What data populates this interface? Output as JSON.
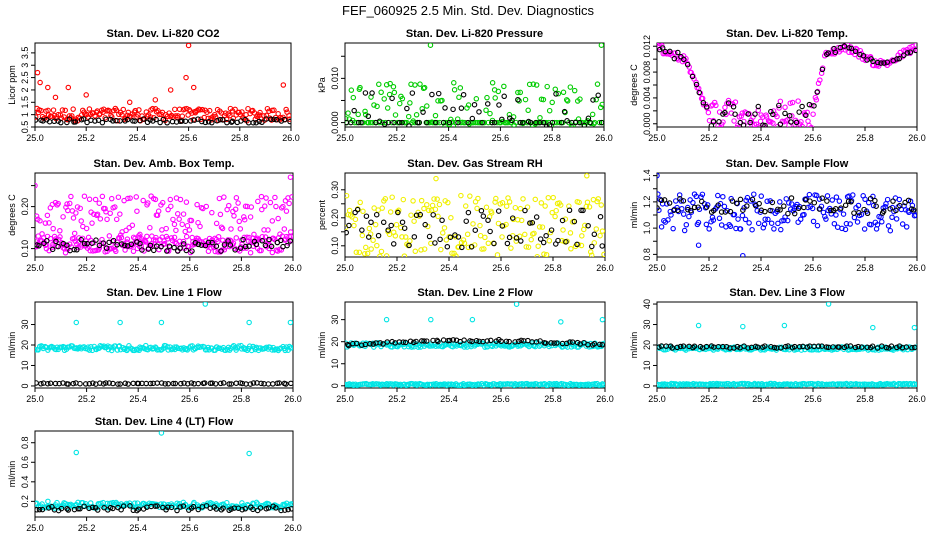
{
  "figure": {
    "title": "FEF_060925  2.5 Min. Std. Dev. Diagnostics"
  },
  "chart_data": [
    {
      "type": "scatter",
      "title": "Stan. Dev. Li-820 CO2",
      "ylabel": "Licor ppm",
      "xlim": [
        25.0,
        26.0
      ],
      "ylim": [
        0.5,
        3.9
      ],
      "xticks": [
        25.0,
        25.2,
        25.4,
        25.6,
        25.8,
        26.0
      ],
      "yticks": [
        0.5,
        1.0,
        1.5,
        2.0,
        2.5,
        3.0,
        3.5
      ],
      "series": [
        {
          "name": "red",
          "color": "#ff0000",
          "base": 1.0,
          "spread": 0.25,
          "outliers": [
            [
              25.01,
              2.7
            ],
            [
              25.02,
              2.3
            ],
            [
              25.05,
              2.1
            ],
            [
              25.08,
              1.7
            ],
            [
              25.13,
              2.1
            ],
            [
              25.2,
              1.8
            ],
            [
              25.37,
              1.5
            ],
            [
              25.47,
              1.6
            ],
            [
              25.53,
              2.0
            ],
            [
              25.59,
              2.5
            ],
            [
              25.6,
              3.8
            ],
            [
              25.62,
              2.1
            ],
            [
              25.97,
              2.2
            ]
          ]
        },
        {
          "name": "black",
          "color": "#000000",
          "base": 0.75,
          "spread": 0.08,
          "outliers": []
        }
      ]
    },
    {
      "type": "scatter",
      "title": "Stan. Dev. Li-820 Pressure",
      "ylabel": "kPa",
      "xlim": [
        25.0,
        26.0
      ],
      "ylim": [
        -0.001,
        0.018
      ],
      "xticks": [
        25.0,
        25.2,
        25.4,
        25.6,
        25.8,
        26.0
      ],
      "yticks": [
        0.0,
        0.005,
        0.01,
        0.015
      ],
      "ytick_labels": [
        "0.000",
        "",
        "0.010",
        ""
      ],
      "series": [
        {
          "name": "green",
          "color": "#00cc00",
          "base": 0.004,
          "spread": 0.005,
          "floor": 0.0,
          "outliers": [
            [
              25.33,
              0.0175
            ],
            [
              25.99,
              0.0175
            ],
            [
              25.57,
              0.009
            ],
            [
              25.42,
              0.009
            ],
            [
              25.27,
              0.0085
            ],
            [
              25.74,
              0.0085
            ]
          ]
        },
        {
          "name": "black",
          "color": "#000000",
          "base": 0.003,
          "spread": 0.004,
          "floor": 0.0,
          "outliers": []
        }
      ]
    },
    {
      "type": "scatter",
      "title": "Stan. Dev. Li-820 Temp.",
      "ylabel": "degrees C",
      "xlim": [
        25.0,
        26.0
      ],
      "ylim": [
        -0.0005,
        0.0125
      ],
      "xticks": [
        25.0,
        25.2,
        25.4,
        25.6,
        25.8,
        26.0
      ],
      "yticks": [
        0.0,
        0.002,
        0.004,
        0.006,
        0.008,
        0.01,
        0.012
      ],
      "ytick_labels": [
        "0.000",
        "",
        "0.004",
        "",
        "0.008",
        "",
        "0.012"
      ],
      "series": [
        {
          "name": "magenta",
          "color": "#ff00ff",
          "curve": "temp",
          "spread": 0.0006,
          "outliers": []
        },
        {
          "name": "black",
          "color": "#000000",
          "curve": "temp",
          "spread": 0.0004,
          "outliers": []
        }
      ]
    },
    {
      "type": "scatter",
      "title": "Stan. Dev. Amb. Box Temp.",
      "ylabel": "degrees C",
      "xlim": [
        25.0,
        26.0
      ],
      "ylim": [
        0.08,
        0.28
      ],
      "xticks": [
        25.0,
        25.2,
        25.4,
        25.6,
        25.8,
        26.0
      ],
      "yticks": [
        0.1,
        0.15,
        0.2,
        0.25
      ],
      "ytick_labels": [
        "0.10",
        "",
        "0.20",
        ""
      ],
      "series": [
        {
          "name": "magenta",
          "color": "#ff00ff",
          "base": 0.165,
          "spread": 0.06,
          "outliers": [
            [
              25.99,
              0.27
            ],
            [
              25.0,
              0.25
            ]
          ]
        },
        {
          "name": "magenta-low",
          "color": "#ff00ff",
          "base": 0.11,
          "spread": 0.02,
          "outliers": []
        },
        {
          "name": "black",
          "color": "#000000",
          "base": 0.108,
          "spread": 0.014,
          "outliers": []
        }
      ]
    },
    {
      "type": "scatter",
      "title": "Stan. Dev. Gas Stream RH",
      "ylabel": "percent",
      "xlim": [
        25.0,
        26.0
      ],
      "ylim": [
        0.06,
        0.36
      ],
      "xticks": [
        25.0,
        25.2,
        25.4,
        25.6,
        25.8,
        26.0
      ],
      "yticks": [
        0.1,
        0.15,
        0.2,
        0.25,
        0.3
      ],
      "ytick_labels": [
        "0.10",
        "",
        "0.20",
        "",
        "0.30"
      ],
      "series": [
        {
          "name": "yellow",
          "color": "#f0f000",
          "base": 0.17,
          "spread": 0.11,
          "outliers": [
            [
              25.35,
              0.34
            ],
            [
              25.93,
              0.35
            ]
          ]
        },
        {
          "name": "black",
          "color": "#000000",
          "base": 0.16,
          "spread": 0.07,
          "outliers": []
        }
      ]
    },
    {
      "type": "scatter",
      "title": "Stan. Dev. Sample Flow",
      "ylabel": "ml/min",
      "xlim": [
        25.0,
        26.0
      ],
      "ylim": [
        0.78,
        1.42
      ],
      "xticks": [
        25.0,
        25.2,
        25.4,
        25.6,
        25.8,
        26.0
      ],
      "yticks": [
        0.8,
        0.9,
        1.0,
        1.1,
        1.2,
        1.3,
        1.4
      ],
      "ytick_labels": [
        "0.8",
        "",
        "1.0",
        "",
        "1.2",
        "",
        "1.4"
      ],
      "series": [
        {
          "name": "blue",
          "color": "#0000ff",
          "base": 1.12,
          "spread": 0.14,
          "outliers": [
            [
              25.0,
              1.4
            ],
            [
              25.33,
              0.79
            ],
            [
              25.16,
              0.87
            ]
          ]
        },
        {
          "name": "black",
          "color": "#000000",
          "base": 1.17,
          "spread": 0.06,
          "outliers": []
        }
      ]
    },
    {
      "type": "scatter",
      "title": "Stan. Dev. Line 1 Flow",
      "ylabel": "ml/min",
      "xlim": [
        25.0,
        26.0
      ],
      "ylim": [
        -1,
        41
      ],
      "xticks": [
        25.0,
        25.2,
        25.4,
        25.6,
        25.8,
        26.0
      ],
      "yticks": [
        0,
        10,
        20,
        30
      ],
      "series": [
        {
          "name": "cyan",
          "color": "#00e5e5",
          "base": 18.5,
          "spread": 1.2,
          "outliers": [
            [
              25.16,
              31
            ],
            [
              25.33,
              31
            ],
            [
              25.49,
              31
            ],
            [
              25.66,
              40
            ],
            [
              25.83,
              31
            ],
            [
              25.99,
              31
            ]
          ]
        },
        {
          "name": "black",
          "color": "#000000",
          "base": 1.2,
          "spread": 0.3,
          "outliers": []
        }
      ]
    },
    {
      "type": "scatter",
      "title": "Stan. Dev. Line 2 Flow",
      "ylabel": "ml/min",
      "xlim": [
        25.0,
        26.0
      ],
      "ylim": [
        -1,
        38
      ],
      "xticks": [
        25.0,
        25.2,
        25.4,
        25.6,
        25.8,
        26.0
      ],
      "yticks": [
        0,
        10,
        20,
        30
      ],
      "series": [
        {
          "name": "cyan-low",
          "color": "#00e5e5",
          "base": 0.6,
          "spread": 0.4,
          "outliers": []
        },
        {
          "name": "cyan-high",
          "color": "#00e5e5",
          "base": 18.5,
          "spread": 1.0,
          "outliers": [
            [
              25.16,
              30
            ],
            [
              25.33,
              30
            ],
            [
              25.49,
              30
            ],
            [
              25.66,
              37
            ],
            [
              25.83,
              29
            ],
            [
              25.99,
              30
            ]
          ]
        },
        {
          "name": "black",
          "color": "#000000",
          "curve": "line2",
          "spread": 0.5,
          "outliers": []
        }
      ]
    },
    {
      "type": "scatter",
      "title": "Stan. Dev. Line 3 Flow",
      "ylabel": "ml/min",
      "xlim": [
        25.0,
        26.0
      ],
      "ylim": [
        -1,
        41
      ],
      "xticks": [
        25.0,
        25.2,
        25.4,
        25.6,
        25.8,
        26.0
      ],
      "yticks": [
        0,
        10,
        20,
        30,
        40
      ],
      "series": [
        {
          "name": "cyan-low",
          "color": "#00e5e5",
          "base": 0.8,
          "spread": 0.4,
          "outliers": []
        },
        {
          "name": "cyan-high",
          "color": "#00e5e5",
          "base": 18.3,
          "spread": 0.8,
          "outliers": [
            [
              25.16,
              29.5
            ],
            [
              25.33,
              29
            ],
            [
              25.49,
              29.5
            ],
            [
              25.66,
              40
            ],
            [
              25.83,
              28.5
            ],
            [
              25.99,
              28.5
            ]
          ]
        },
        {
          "name": "black",
          "color": "#000000",
          "base": 19.0,
          "spread": 0.5,
          "outliers": []
        }
      ]
    },
    {
      "type": "scatter",
      "title": "Stan. Dev. Line 4 (LT) Flow",
      "ylabel": "ml/min",
      "xlim": [
        25.0,
        26.0
      ],
      "ylim": [
        0.04,
        0.92
      ],
      "xticks": [
        25.0,
        25.2,
        25.4,
        25.6,
        25.8,
        26.0
      ],
      "yticks": [
        0.2,
        0.4,
        0.6,
        0.8
      ],
      "series": [
        {
          "name": "cyan",
          "color": "#00e5e5",
          "base": 0.16,
          "spread": 0.03,
          "outliers": [
            [
              25.16,
              0.7
            ],
            [
              25.49,
              0.9
            ],
            [
              25.83,
              0.69
            ],
            [
              25.05,
              0.2
            ]
          ]
        },
        {
          "name": "black",
          "color": "#000000",
          "base": 0.13,
          "spread": 0.025,
          "outliers": []
        }
      ]
    }
  ]
}
